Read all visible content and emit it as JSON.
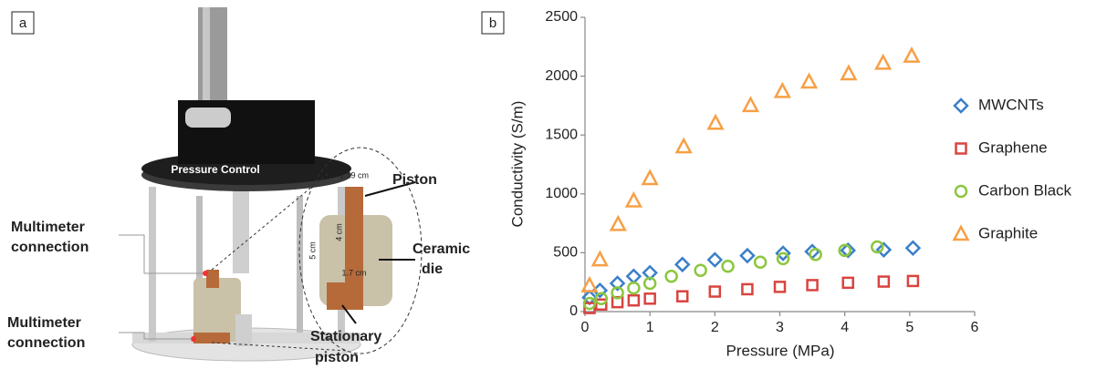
{
  "panel_labels": [
    "a",
    "b"
  ],
  "apparatus": {
    "pressure_control": "Pressure Control",
    "multimeter_top": [
      "Multimeter",
      "connection"
    ],
    "multimeter_bottom": [
      "Multimeter",
      "connection"
    ],
    "piston": "Piston",
    "ceramic_die": [
      "Ceramic",
      "die"
    ],
    "stationary_piston": [
      "Stationary",
      "piston"
    ],
    "dimensions": [
      "1.19 cm",
      "4 cm",
      "5 cm",
      "1.7 cm"
    ]
  },
  "chart_data": {
    "type": "scatter",
    "x_label": "Pressure (MPa)",
    "y_label": "Conductivity (S/m)",
    "xlim": [
      0,
      6
    ],
    "xticks": [
      0,
      1,
      2,
      3,
      4,
      5,
      6
    ],
    "ylim": [
      0,
      2500
    ],
    "yticks": [
      0,
      500,
      1000,
      1500,
      2000,
      2500
    ],
    "grid": false,
    "legend": "right",
    "series": [
      {
        "name": "MWCNTs",
        "color": "#3a7fc8",
        "marker": "diamond",
        "x": [
          0.07,
          0.23,
          0.5,
          0.75,
          1.0,
          1.5,
          2.0,
          2.5,
          3.05,
          3.5,
          4.05,
          4.6,
          5.05
        ],
        "values": [
          120,
          180,
          240,
          300,
          330,
          400,
          440,
          475,
          495,
          510,
          520,
          525,
          540
        ]
      },
      {
        "name": "Graphene",
        "color": "#d9443f",
        "marker": "square",
        "x": [
          0.07,
          0.25,
          0.5,
          0.75,
          1.0,
          1.5,
          2.0,
          2.5,
          3.0,
          3.5,
          4.05,
          4.6,
          5.05
        ],
        "values": [
          30,
          60,
          80,
          95,
          110,
          130,
          170,
          190,
          210,
          225,
          245,
          255,
          260
        ]
      },
      {
        "name": "Carbon Black",
        "color": "#8cc63f",
        "marker": "circle",
        "x": [
          0.07,
          0.25,
          0.5,
          0.75,
          1.0,
          1.33,
          1.78,
          2.2,
          2.7,
          3.05,
          3.55,
          4.0,
          4.5
        ],
        "values": [
          70,
          110,
          160,
          200,
          240,
          300,
          350,
          385,
          420,
          450,
          485,
          520,
          550
        ]
      },
      {
        "name": "Graphite",
        "color": "#f7a047",
        "marker": "triangle",
        "x": [
          0.07,
          0.23,
          0.51,
          0.75,
          1.0,
          1.52,
          2.01,
          2.55,
          3.04,
          3.45,
          4.06,
          4.59,
          5.03
        ],
        "values": [
          220,
          440,
          740,
          940,
          1130,
          1400,
          1600,
          1750,
          1870,
          1950,
          2020,
          2110,
          2170
        ]
      }
    ]
  }
}
